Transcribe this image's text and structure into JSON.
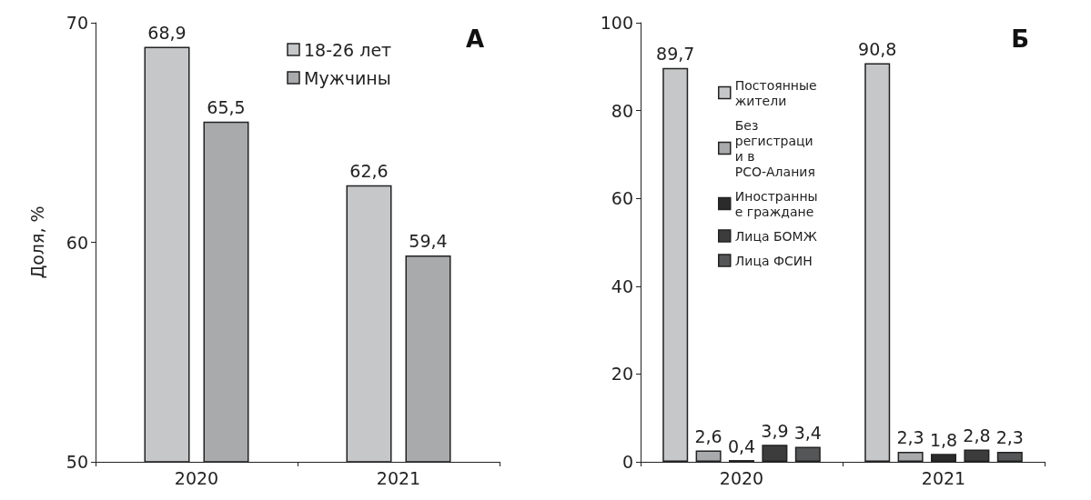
{
  "chart_data": [
    {
      "type": "bar",
      "title": "А",
      "ylabel": "Доля, %",
      "categories": [
        "2020",
        "2021"
      ],
      "series": [
        {
          "name": "18-26 лет",
          "color": "#c6c7c9",
          "values": [
            68.9,
            62.6
          ],
          "value_labels": [
            "68,9",
            "62,6"
          ]
        },
        {
          "name": "Мужчины",
          "color": "#a9aaac",
          "values": [
            65.5,
            59.4
          ],
          "value_labels": [
            "65,5",
            "59,4"
          ]
        }
      ],
      "ylim": [
        50,
        70
      ],
      "yticks": [
        50,
        60,
        70
      ],
      "legend": "top right",
      "grid": false
    },
    {
      "type": "bar",
      "title": "Б",
      "categories": [
        "2020",
        "2021"
      ],
      "series": [
        {
          "name": "Постоянные жители",
          "color": "#c6c7c9",
          "values": [
            89.7,
            90.8
          ],
          "value_labels": [
            "89,7",
            "90,8"
          ]
        },
        {
          "name": "Без регистрации в РСО-Алания",
          "color": "#a9aaac",
          "values": [
            2.6,
            2.3
          ],
          "value_labels": [
            "2,6",
            "2,3"
          ]
        },
        {
          "name": "Иностранные граждане",
          "color": "#2b2b2b",
          "values": [
            0.4,
            1.8
          ],
          "value_labels": [
            "0,4",
            "1,8"
          ]
        },
        {
          "name": "Лица БОМЖ",
          "color": "#3c3c3c",
          "values": [
            3.9,
            2.8
          ],
          "value_labels": [
            "3,9",
            "2,8"
          ]
        },
        {
          "name": "Лица ФСИН",
          "color": "#555657",
          "values": [
            3.4,
            2.3
          ],
          "value_labels": [
            "3,4",
            "2,3"
          ]
        }
      ],
      "ylim": [
        0,
        100
      ],
      "yticks": [
        0,
        20,
        40,
        60,
        80,
        100
      ],
      "legend": "top left",
      "grid": false
    }
  ]
}
